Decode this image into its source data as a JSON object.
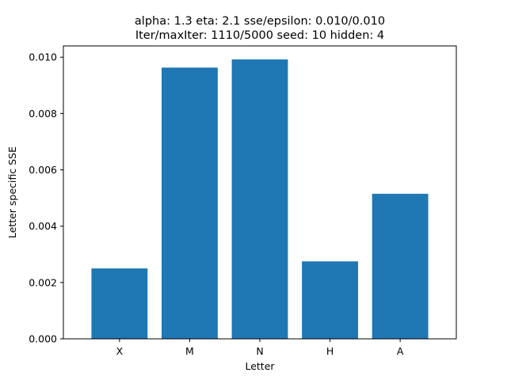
{
  "chart_data": {
    "type": "bar",
    "title_lines": [
      "alpha: 1.3  eta: 2.1  sse/epsilon: 0.010/0.010",
      "Iter/maxIter: 1110/5000  seed: 10  hidden: 4"
    ],
    "xlabel": "Letter",
    "ylabel": "Letter specific SSE",
    "categories": [
      "X",
      "M",
      "N",
      "H",
      "A"
    ],
    "values": [
      0.0025,
      0.00963,
      0.00992,
      0.00275,
      0.00515
    ],
    "ylim": [
      0,
      0.0104
    ],
    "yticks": [
      0.0,
      0.002,
      0.004,
      0.006,
      0.008,
      0.01
    ],
    "ytick_labels": [
      "0.000",
      "0.002",
      "0.004",
      "0.006",
      "0.008",
      "0.010"
    ],
    "grid": false,
    "bar_color": "#1f77b4"
  }
}
